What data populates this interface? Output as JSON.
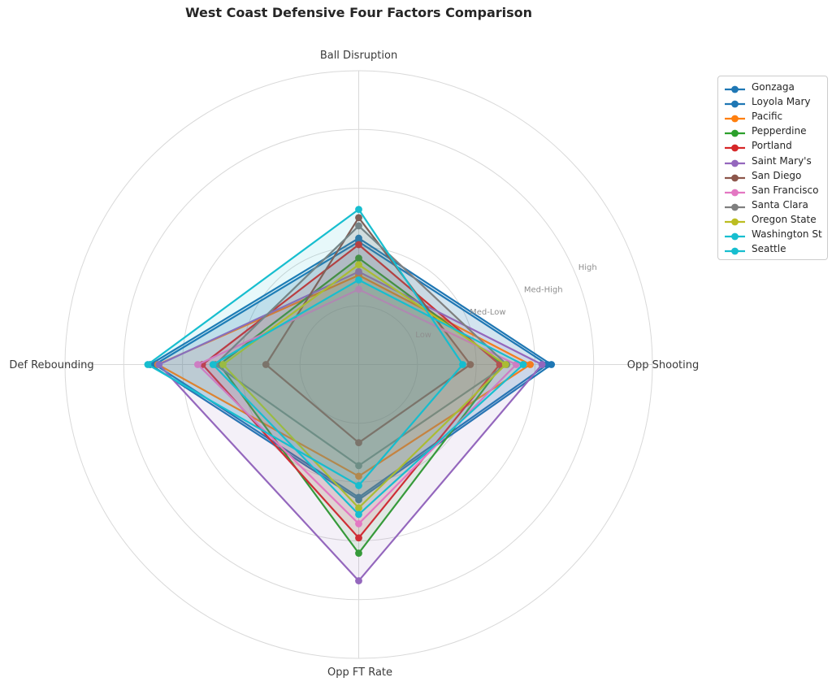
{
  "title": "West Coast Defensive Four Factors Comparison",
  "chart_data": {
    "type": "radar",
    "title": "West Coast Defensive Four Factors Comparison",
    "categories": [
      "Ball Disruption",
      "Opp Shooting",
      "Opp FT Rate",
      "Def Rebounding"
    ],
    "radial_ticks": [
      {
        "label": "Low",
        "value": 1
      },
      {
        "label": "Med-Low",
        "value": 2
      },
      {
        "label": "Med-High",
        "value": 3
      },
      {
        "label": "High",
        "value": 4
      }
    ],
    "r_max": 5,
    "grid": true,
    "legend_position": "upper right",
    "series": [
      {
        "name": "Gonzaga",
        "color": "#1f77b4",
        "values": [
          2.15,
          3.28,
          2.3,
          3.55
        ]
      },
      {
        "name": "Loyola Mary",
        "color": "#1f77b4",
        "values": [
          2.09,
          3.21,
          2.26,
          3.47
        ]
      },
      {
        "name": "Pacific",
        "color": "#ff7f0e",
        "values": [
          1.52,
          2.92,
          1.9,
          3.42
        ]
      },
      {
        "name": "Pepperdine",
        "color": "#2ca02c",
        "values": [
          1.81,
          2.45,
          3.21,
          2.37
        ]
      },
      {
        "name": "Portland",
        "color": "#d62728",
        "values": [
          2.04,
          2.4,
          2.95,
          2.66
        ]
      },
      {
        "name": "Saint Mary's",
        "color": "#9467bd",
        "values": [
          1.58,
          3.12,
          3.68,
          3.4
        ]
      },
      {
        "name": "San Diego",
        "color": "#8c564b",
        "values": [
          2.5,
          1.9,
          1.33,
          1.58
        ]
      },
      {
        "name": "San Francisco",
        "color": "#e377c2",
        "values": [
          1.28,
          2.68,
          2.71,
          2.74
        ]
      },
      {
        "name": "Santa Clara",
        "color": "#7f7f7f",
        "values": [
          2.36,
          2.52,
          1.72,
          2.44
        ]
      },
      {
        "name": "Oregon State",
        "color": "#bcbd22",
        "values": [
          1.7,
          2.5,
          2.44,
          2.31
        ]
      },
      {
        "name": "Washington St",
        "color": "#17becf",
        "values": [
          2.64,
          1.77,
          2.06,
          3.59
        ]
      },
      {
        "name": "Seattle",
        "color": "#17becf",
        "values": [
          1.44,
          2.8,
          2.55,
          2.48
        ]
      }
    ],
    "style": {
      "grid_color": "#d9d9d9",
      "tick_label_color": "#8f8f8f",
      "axis_label_color": "#3a3a3a",
      "fill_alpha": 0.1,
      "line_width": 2.2,
      "marker_radius": 4.4,
      "background": "#ffffff"
    }
  }
}
